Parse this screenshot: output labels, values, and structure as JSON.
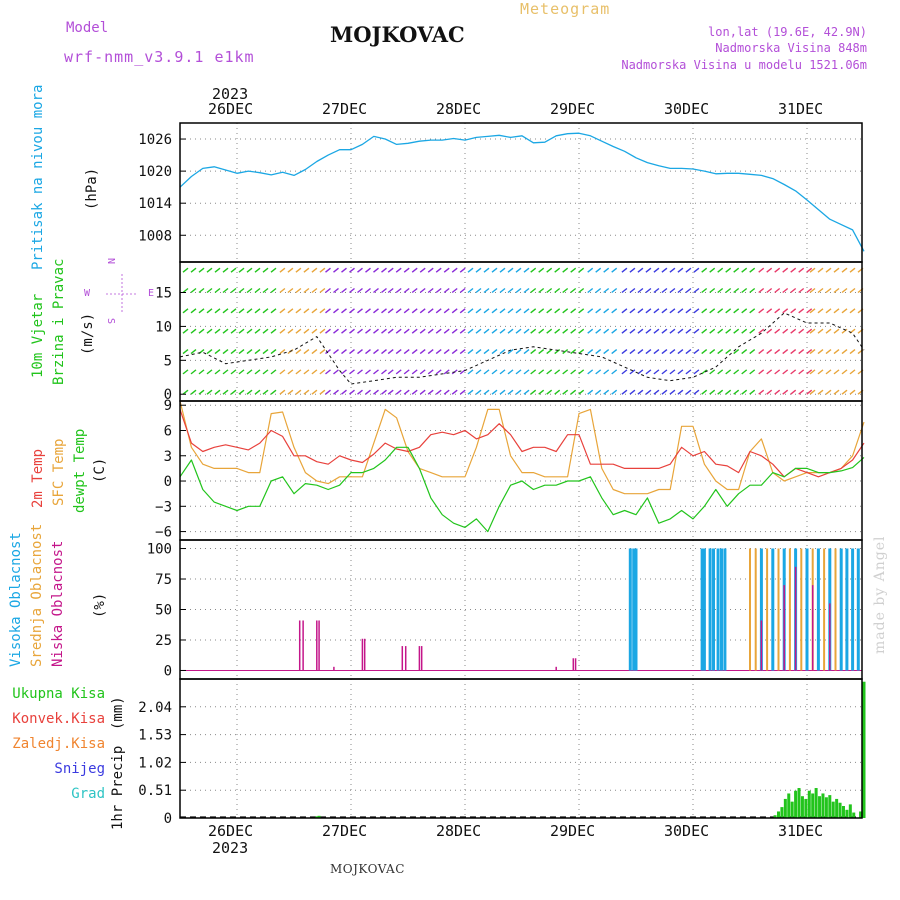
{
  "header": {
    "model_label": "Model",
    "model_name": "wrf-nmm_v3.9.1  e1km",
    "title": "MOJKOVAC",
    "product": "Meteogram",
    "coords": "lon,lat (19.6E, 42.9N)",
    "elevation": "Nadmorska Visina 848m",
    "model_elevation": "Nadmorska Visina u modelu 1521.06m"
  },
  "footer": {
    "station": "MOJKOVAC",
    "credit": "made by Angel"
  },
  "colors": {
    "pressure": "#1ba7e4",
    "temp2m": "#e8413c",
    "sfc_temp": "#e8a53a",
    "dewpoint": "#22c41c",
    "high_cloud": "#1ba7e4",
    "mid_cloud": "#e8a53a",
    "low_cloud": "#c4168a",
    "total_precip": "#22c41c",
    "conv_precip": "#e8413c",
    "frz_precip": "#f08530",
    "snow": "#3b3be0",
    "hail": "#2ec4c4",
    "purple_text": "#b34fd8",
    "gold_text": "#e8c06a"
  },
  "chart_data": [
    {
      "type": "line",
      "panel": "pressure",
      "year_label": "2023",
      "top_date_labels": [
        "26DEC",
        "27DEC",
        "28DEC",
        "29DEC",
        "30DEC",
        "31DEC"
      ],
      "ylabel_left": "Pritisak na nivou mora",
      "ylabel_unit": "(hPa)",
      "yticks": [
        1008,
        1014,
        1020,
        1026
      ],
      "ylim": [
        1003,
        1029
      ],
      "x_day_range": [
        -0.5,
        5.5
      ],
      "series": [
        {
          "name": "Pritisak na nivou mora",
          "x": [
            -0.5,
            -0.4,
            -0.3,
            -0.2,
            -0.1,
            0.0,
            0.1,
            0.2,
            0.3,
            0.4,
            0.5,
            0.6,
            0.7,
            0.8,
            0.9,
            1.0,
            1.1,
            1.2,
            1.3,
            1.4,
            1.5,
            1.6,
            1.7,
            1.8,
            1.9,
            2.0,
            2.1,
            2.2,
            2.3,
            2.4,
            2.5,
            2.6,
            2.7,
            2.8,
            2.9,
            3.0,
            3.1,
            3.2,
            3.3,
            3.4,
            3.5,
            3.6,
            3.7,
            3.8,
            3.9,
            4.0,
            4.1,
            4.2,
            4.3,
            4.4,
            4.5,
            4.6,
            4.7,
            4.8,
            4.9,
            5.0,
            5.1,
            5.2,
            5.3,
            5.4,
            5.5
          ],
          "values": [
            1017,
            1019,
            1020.5,
            1020.8,
            1020.2,
            1019.6,
            1020,
            1019.7,
            1019.3,
            1019.8,
            1019.2,
            1020.3,
            1021.8,
            1023,
            1024,
            1024,
            1025,
            1026.5,
            1026,
            1025,
            1025.2,
            1025.6,
            1025.8,
            1025.8,
            1026.1,
            1025.8,
            1026.3,
            1026.5,
            1026.7,
            1026.3,
            1026.6,
            1025.3,
            1025.4,
            1026.6,
            1027,
            1027.1,
            1026.6,
            1025.6,
            1024.6,
            1023.7,
            1022.5,
            1021.6,
            1021,
            1020.5,
            1020.5,
            1020.4,
            1020,
            1019.5,
            1019.6,
            1019.6,
            1019.4,
            1019.2,
            1018.6,
            1017.5,
            1016.3,
            1014.6,
            1012.8,
            1011,
            1010,
            1009,
            1005
          ]
        }
      ]
    },
    {
      "type": "line",
      "panel": "wind",
      "ylabel_left": [
        "10m Vjetar",
        "Brzina i Pravac"
      ],
      "ylabel_unit": "(m/s)",
      "compass": {
        "n": "N",
        "s": "S",
        "w": "W",
        "e": "E"
      },
      "yticks": [
        0,
        5,
        10,
        15
      ],
      "ylim": [
        -1,
        19.5
      ],
      "series": [
        {
          "name": "Brzina",
          "x": [
            -0.5,
            -0.3,
            -0.1,
            0.1,
            0.3,
            0.5,
            0.7,
            0.9,
            1.0,
            1.2,
            1.4,
            1.6,
            1.8,
            2.0,
            2.2,
            2.4,
            2.6,
            2.8,
            3.0,
            3.2,
            3.4,
            3.6,
            3.8,
            4.0,
            4.2,
            4.4,
            4.6,
            4.8,
            5.0,
            5.2,
            5.4,
            5.5
          ],
          "values": [
            5.5,
            6.2,
            4.5,
            5,
            5.5,
            6.5,
            8.5,
            3.5,
            1.5,
            2,
            2.5,
            2.5,
            3,
            3.5,
            5,
            6.5,
            7,
            6.5,
            6,
            5.5,
            4,
            2.5,
            2,
            2.5,
            4,
            7,
            9,
            12,
            10.5,
            10.5,
            9,
            6.5
          ]
        }
      ]
    },
    {
      "type": "line",
      "panel": "temperature",
      "ylabel_left": [
        "2m Temp",
        "SFC Temp",
        "dewpt Temp"
      ],
      "ylabel_unit": "(C)",
      "yticks": [
        -6,
        -3,
        0,
        3,
        6,
        9
      ],
      "ylim": [
        -7,
        9.5
      ],
      "series": [
        {
          "name": "2m Temp",
          "x": [
            -0.5,
            -0.4,
            -0.3,
            -0.2,
            -0.1,
            0.0,
            0.1,
            0.2,
            0.3,
            0.4,
            0.5,
            0.6,
            0.7,
            0.8,
            0.9,
            1.0,
            1.1,
            1.2,
            1.3,
            1.4,
            1.5,
            1.6,
            1.7,
            1.8,
            1.9,
            2.0,
            2.1,
            2.2,
            2.3,
            2.4,
            2.5,
            2.6,
            2.7,
            2.8,
            2.9,
            3.0,
            3.1,
            3.2,
            3.3,
            3.4,
            3.5,
            3.6,
            3.7,
            3.8,
            3.9,
            4.0,
            4.1,
            4.2,
            4.3,
            4.4,
            4.5,
            4.6,
            4.7,
            4.8,
            4.9,
            5.0,
            5.1,
            5.2,
            5.3,
            5.4,
            5.5
          ],
          "values": [
            8.5,
            4.5,
            3.5,
            4,
            4.3,
            4,
            3.7,
            4.5,
            6,
            5.3,
            3,
            3,
            2.3,
            2,
            3,
            2.5,
            2.2,
            3.2,
            4.5,
            3.8,
            3.5,
            4,
            5.5,
            5.8,
            5.5,
            6,
            5,
            5.5,
            6.8,
            5.5,
            3.5,
            4,
            4,
            3.5,
            5.5,
            5.5,
            2,
            2,
            2,
            1.5,
            1.5,
            1.5,
            1.5,
            2,
            4,
            3,
            3.5,
            2,
            1.8,
            1,
            3.5,
            3,
            2,
            0.5,
            1.5,
            1,
            0.5,
            1,
            1.5,
            2.5,
            4.5
          ]
        },
        {
          "name": "SFC Temp",
          "x": [
            -0.5,
            -0.4,
            -0.3,
            -0.2,
            -0.1,
            0.0,
            0.1,
            0.2,
            0.3,
            0.4,
            0.5,
            0.6,
            0.7,
            0.8,
            0.9,
            1.0,
            1.1,
            1.2,
            1.3,
            1.4,
            1.5,
            1.6,
            1.7,
            1.8,
            1.9,
            2.0,
            2.1,
            2.2,
            2.3,
            2.4,
            2.5,
            2.6,
            2.7,
            2.8,
            2.9,
            3.0,
            3.1,
            3.2,
            3.3,
            3.4,
            3.5,
            3.6,
            3.7,
            3.8,
            3.9,
            4.0,
            4.1,
            4.2,
            4.3,
            4.4,
            4.5,
            4.6,
            4.7,
            4.8,
            4.9,
            5.0,
            5.1,
            5.2,
            5.3,
            5.4,
            5.5
          ],
          "values": [
            9.5,
            4,
            2,
            1.5,
            1.5,
            1.5,
            1,
            1,
            8,
            8.2,
            4,
            1,
            0,
            -0.3,
            0.5,
            0.5,
            0.5,
            4.5,
            8.5,
            7.5,
            3.5,
            1.5,
            1,
            0.5,
            0.5,
            0.5,
            4,
            8.5,
            8.5,
            3,
            1,
            1,
            0.5,
            0.5,
            0.5,
            8,
            8.5,
            1.5,
            -1,
            -1.5,
            -1.5,
            -1.5,
            -1,
            -1,
            6.5,
            6.5,
            2,
            0,
            -1,
            -1,
            3.5,
            5,
            1,
            0,
            0.5,
            1,
            1,
            1,
            1.5,
            3,
            7
          ]
        },
        {
          "name": "dewpt Temp",
          "x": [
            -0.5,
            -0.4,
            -0.3,
            -0.2,
            -0.1,
            0.0,
            0.1,
            0.2,
            0.3,
            0.4,
            0.5,
            0.6,
            0.7,
            0.8,
            0.9,
            1.0,
            1.1,
            1.2,
            1.3,
            1.4,
            1.5,
            1.6,
            1.7,
            1.8,
            1.9,
            2.0,
            2.1,
            2.2,
            2.3,
            2.4,
            2.5,
            2.6,
            2.7,
            2.8,
            2.9,
            3.0,
            3.1,
            3.2,
            3.3,
            3.4,
            3.5,
            3.6,
            3.7,
            3.8,
            3.9,
            4.0,
            4.1,
            4.2,
            4.3,
            4.4,
            4.5,
            4.6,
            4.7,
            4.8,
            4.9,
            5.0,
            5.1,
            5.2,
            5.3,
            5.4,
            5.5
          ],
          "values": [
            0.5,
            2.5,
            -1,
            -2.5,
            -3,
            -3.5,
            -3,
            -3,
            0,
            0.5,
            -1.5,
            -0.3,
            -0.5,
            -1,
            -0.5,
            1,
            1,
            1.5,
            2.5,
            4,
            4,
            1.5,
            -2,
            -4,
            -5,
            -5.5,
            -4.5,
            -6,
            -3,
            -0.5,
            0,
            -1,
            -0.5,
            -0.5,
            0,
            0,
            0.5,
            -2,
            -4,
            -3.5,
            -4,
            -2,
            -5,
            -4.5,
            -3.5,
            -4.5,
            -3,
            -1,
            -3,
            -1.5,
            -0.5,
            -0.5,
            1,
            0.5,
            1.5,
            1.5,
            1,
            1,
            1.2,
            1.6,
            2.8
          ]
        }
      ]
    },
    {
      "type": "bar",
      "panel": "clouds",
      "ylabel_left": [
        "Visoka Oblacnost",
        "Srednja Oblacnost",
        "Niska Oblacnost"
      ],
      "ylabel_unit": "(%)",
      "yticks": [
        0,
        25,
        50,
        75,
        100
      ],
      "ylim": [
        -7,
        107
      ],
      "series": [
        {
          "name": "Visoka Oblacnost",
          "x": [
            3.45,
            3.48,
            3.5,
            4.08,
            4.1,
            4.15,
            4.18,
            4.22,
            4.25,
            4.28,
            4.6,
            4.7,
            4.8,
            4.9,
            5.0,
            5.1,
            5.2,
            5.3,
            5.35,
            5.4,
            5.45
          ],
          "values": [
            100,
            100,
            100,
            100,
            100,
            100,
            100,
            100,
            100,
            100,
            100,
            100,
            100,
            100,
            100,
            100,
            100,
            100,
            100,
            100,
            100
          ]
        },
        {
          "name": "Srednja Oblacnost",
          "x": [
            4.5,
            4.55,
            4.65,
            4.75,
            4.85,
            4.95,
            5.05,
            5.15,
            5.25
          ],
          "values": [
            100,
            100,
            100,
            100,
            100,
            100,
            100,
            100,
            100
          ]
        },
        {
          "name": "Niska Oblacnost",
          "x": [
            0.55,
            0.58,
            0.7,
            0.72,
            0.85,
            1.1,
            1.12,
            1.45,
            1.48,
            1.6,
            1.62,
            2.8,
            2.95,
            2.97,
            4.6,
            4.8,
            4.9,
            5.05,
            5.2
          ],
          "values": [
            41,
            41,
            41,
            41,
            3,
            26,
            26,
            20,
            20,
            20,
            20,
            3,
            10,
            10,
            41,
            70,
            85,
            70,
            55
          ]
        }
      ]
    },
    {
      "type": "bar",
      "panel": "precip",
      "ylabel_left": "1hr Precip",
      "ylabel_unit": "(mm)",
      "legend": [
        "Ukupna Kisa",
        "Konvek.Kisa",
        "Zaledj.Kisa",
        "Snijeg",
        "Grad"
      ],
      "bottom_date_labels": [
        "26DEC",
        "27DEC",
        "28DEC",
        "29DEC",
        "30DEC",
        "31DEC"
      ],
      "year_label": "2023",
      "yticks": [
        0,
        0.51,
        1.02,
        1.53,
        2.04
      ],
      "ylim": [
        0,
        2.55
      ],
      "series": [
        {
          "name": "Ukupna Kisa",
          "x": [
            0.7,
            0.72,
            4.72,
            4.75,
            4.78,
            4.81,
            4.84,
            4.87,
            4.9,
            4.93,
            4.96,
            4.99,
            5.02,
            5.05,
            5.08,
            5.11,
            5.14,
            5.17,
            5.2,
            5.23,
            5.26,
            5.29,
            5.32,
            5.35,
            5.38,
            5.41,
            5.47,
            5.5
          ],
          "values": [
            0.03,
            0.04,
            0.05,
            0.12,
            0.2,
            0.35,
            0.45,
            0.3,
            0.5,
            0.55,
            0.4,
            0.35,
            0.5,
            0.45,
            0.55,
            0.4,
            0.45,
            0.38,
            0.42,
            0.3,
            0.35,
            0.28,
            0.22,
            0.15,
            0.25,
            0.1,
            0.12,
            2.5
          ]
        }
      ]
    }
  ]
}
